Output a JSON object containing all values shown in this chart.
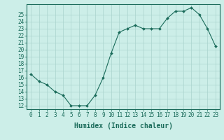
{
  "x": [
    0,
    1,
    2,
    3,
    4,
    5,
    6,
    7,
    8,
    9,
    10,
    11,
    12,
    13,
    14,
    15,
    16,
    17,
    18,
    19,
    20,
    21,
    22,
    23
  ],
  "y": [
    16.5,
    15.5,
    15.0,
    14.0,
    13.5,
    12.0,
    12.0,
    12.0,
    13.5,
    16.0,
    19.5,
    22.5,
    23.0,
    23.5,
    23.0,
    23.0,
    23.0,
    24.5,
    25.5,
    25.5,
    26.0,
    25.0,
    23.0,
    20.5
  ],
  "line_color": "#1a6b5a",
  "marker": "D",
  "marker_size": 2.0,
  "bg_color": "#cceee8",
  "grid_color": "#aad4ce",
  "xlabel": "Humidex (Indice chaleur)",
  "ylim": [
    11.5,
    26.5
  ],
  "xlim": [
    -0.5,
    23.5
  ],
  "yticks": [
    12,
    13,
    14,
    15,
    16,
    17,
    18,
    19,
    20,
    21,
    22,
    23,
    24,
    25
  ],
  "xticks": [
    0,
    1,
    2,
    3,
    4,
    5,
    6,
    7,
    8,
    9,
    10,
    11,
    12,
    13,
    14,
    15,
    16,
    17,
    18,
    19,
    20,
    21,
    22,
    23
  ],
  "axis_color": "#1a6b5a",
  "tick_fontsize": 5.5,
  "xlabel_fontsize": 7.0,
  "linewidth": 0.8
}
